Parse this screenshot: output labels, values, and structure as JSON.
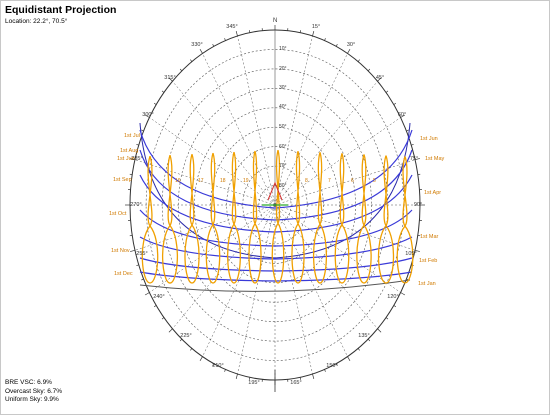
{
  "header": {
    "title": "Equidistant Projection",
    "location": "Location: 22.2°, 70.5°"
  },
  "compass": {
    "north": "N",
    "bearings_left": [
      "345°",
      "330°",
      "315°",
      "300°",
      "285°",
      "270°",
      "255°",
      "240°",
      "225°",
      "210°",
      "195°"
    ],
    "bearings_right": [
      "15°",
      "30°",
      "45°",
      "60°",
      "75°",
      "90°",
      "105°",
      "120°",
      "135°",
      "150°",
      "165°"
    ],
    "altitudes": [
      "10°",
      "20°",
      "30°",
      "40°",
      "50°",
      "60°",
      "70°",
      "80°"
    ]
  },
  "months_left": [
    "1st Jul",
    "1st Aug",
    "1st Jun",
    "1st Sep",
    "1st Oct",
    "1st Nov",
    "1st Dec"
  ],
  "months_right": [
    "1st Jun",
    "1st May",
    "1st Apr",
    "1st Mar",
    "1st Feb",
    "1st Jan"
  ],
  "hour_labels": [
    "16",
    "17",
    "18",
    "19",
    "8",
    "7",
    "6",
    "5"
  ],
  "stats": {
    "bre_vsc": "BRE VSC: 6.9%",
    "overcast": "Overcast Sky: 6.7%",
    "uniform": "Uniform Sky: 9.9%"
  },
  "colors": {
    "sun_path": "#3a3ad8",
    "analemma": "#f0a000",
    "grid": "#555555",
    "obstruction": "#d23030",
    "label": "#d07a00"
  }
}
